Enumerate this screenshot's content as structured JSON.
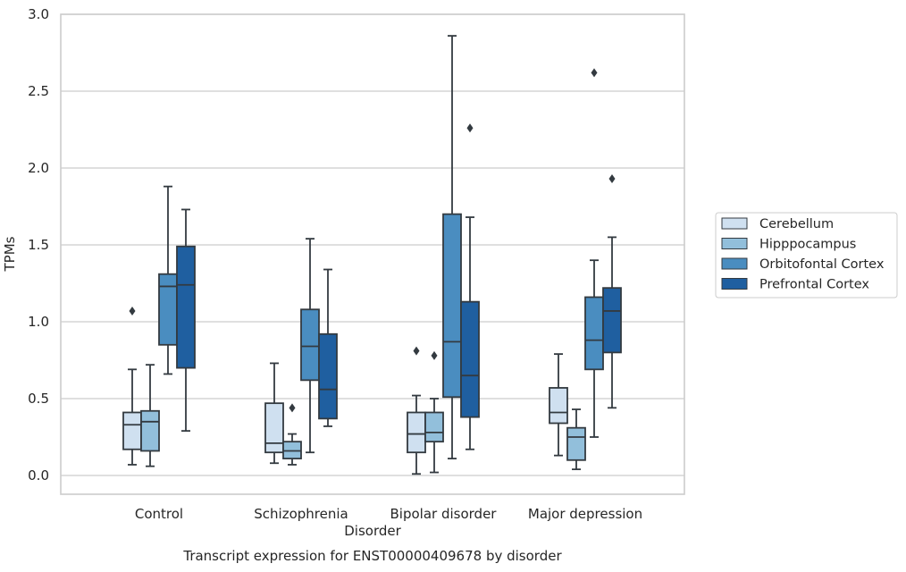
{
  "chart_data": {
    "type": "box",
    "caption": "Transcript expression for ENST00000409678 by disorder",
    "xlabel": "Disorder",
    "ylabel": "TPMs",
    "ylim": [
      -0.12,
      3.0
    ],
    "yticks": [
      0.0,
      0.5,
      1.0,
      1.5,
      2.0,
      2.5,
      3.0
    ],
    "ytick_labels": [
      "0.0",
      "0.5",
      "1.0",
      "1.5",
      "2.0",
      "2.5",
      "3.0"
    ],
    "grid": "horizontal",
    "legend_position": "right",
    "categories": [
      "Control",
      "Schizophrenia",
      "Bipolar disorder",
      "Major depression"
    ],
    "series": [
      {
        "name": "Cerebellum",
        "color": "#cfe0f0",
        "boxes": [
          {
            "whisker_low": 0.07,
            "q1": 0.17,
            "median": 0.33,
            "q3": 0.41,
            "whisker_high": 0.69,
            "outliers": [
              1.07
            ]
          },
          {
            "whisker_low": 0.08,
            "q1": 0.15,
            "median": 0.21,
            "q3": 0.47,
            "whisker_high": 0.73,
            "outliers": []
          },
          {
            "whisker_low": 0.01,
            "q1": 0.15,
            "median": 0.27,
            "q3": 0.41,
            "whisker_high": 0.52,
            "outliers": [
              0.81
            ]
          },
          {
            "whisker_low": 0.13,
            "q1": 0.34,
            "median": 0.41,
            "q3": 0.57,
            "whisker_high": 0.79,
            "outliers": []
          }
        ]
      },
      {
        "name": "Hipppocampus",
        "color": "#92bfdb",
        "boxes": [
          {
            "whisker_low": 0.06,
            "q1": 0.16,
            "median": 0.35,
            "q3": 0.42,
            "whisker_high": 0.72,
            "outliers": []
          },
          {
            "whisker_low": 0.07,
            "q1": 0.11,
            "median": 0.16,
            "q3": 0.22,
            "whisker_high": 0.27,
            "outliers": [
              0.44
            ]
          },
          {
            "whisker_low": 0.02,
            "q1": 0.22,
            "median": 0.28,
            "q3": 0.41,
            "whisker_high": 0.5,
            "outliers": [
              0.78
            ]
          },
          {
            "whisker_low": 0.04,
            "q1": 0.1,
            "median": 0.25,
            "q3": 0.31,
            "whisker_high": 0.43,
            "outliers": []
          }
        ]
      },
      {
        "name": "Orbitofontal Cortex",
        "color": "#4a8dc0",
        "boxes": [
          {
            "whisker_low": 0.66,
            "q1": 0.85,
            "median": 1.23,
            "q3": 1.31,
            "whisker_high": 1.88,
            "outliers": []
          },
          {
            "whisker_low": 0.15,
            "q1": 0.62,
            "median": 0.84,
            "q3": 1.08,
            "whisker_high": 1.54,
            "outliers": []
          },
          {
            "whisker_low": 0.11,
            "q1": 0.51,
            "median": 0.87,
            "q3": 1.7,
            "whisker_high": 2.86,
            "outliers": []
          },
          {
            "whisker_low": 0.25,
            "q1": 0.69,
            "median": 0.88,
            "q3": 1.16,
            "whisker_high": 1.4,
            "outliers": [
              2.62
            ]
          }
        ]
      },
      {
        "name": "Prefrontal Cortex",
        "color": "#1f5fa0",
        "boxes": [
          {
            "whisker_low": 0.29,
            "q1": 0.7,
            "median": 1.24,
            "q3": 1.49,
            "whisker_high": 1.73,
            "outliers": []
          },
          {
            "whisker_low": 0.32,
            "q1": 0.37,
            "median": 0.56,
            "q3": 0.92,
            "whisker_high": 1.34,
            "outliers": []
          },
          {
            "whisker_low": 0.17,
            "q1": 0.38,
            "median": 0.65,
            "q3": 1.13,
            "whisker_high": 1.68,
            "outliers": [
              2.26
            ]
          },
          {
            "whisker_low": 0.44,
            "q1": 0.8,
            "median": 1.07,
            "q3": 1.22,
            "whisker_high": 1.55,
            "outliers": [
              1.93
            ]
          }
        ]
      }
    ]
  }
}
